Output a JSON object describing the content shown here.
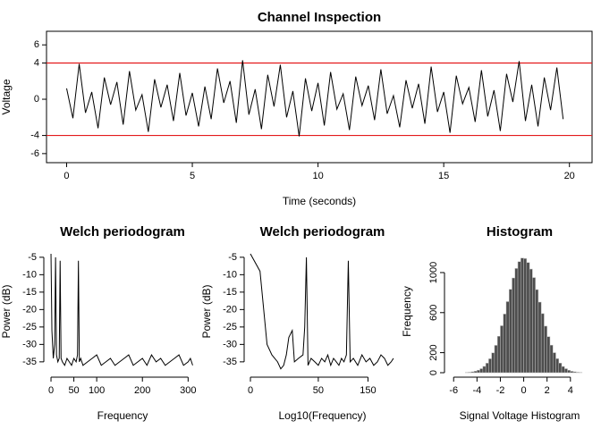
{
  "chart_data": [
    {
      "type": "line",
      "title": "Channel Inspection",
      "x_label": "Time (seconds)",
      "y_label": "Voltage",
      "x": [
        0,
        0.25,
        0.5,
        0.75,
        1,
        1.25,
        1.5,
        1.75,
        2,
        2.25,
        2.5,
        2.75,
        3,
        3.25,
        3.5,
        3.75,
        4,
        4.25,
        4.5,
        4.75,
        5,
        5.25,
        5.5,
        5.75,
        6,
        6.25,
        6.5,
        6.75,
        7,
        7.25,
        7.5,
        7.75,
        8,
        8.25,
        8.5,
        8.75,
        9,
        9.25,
        9.5,
        9.75,
        10,
        10.25,
        10.5,
        10.75,
        11,
        11.25,
        11.5,
        11.75,
        12,
        12.25,
        12.5,
        12.75,
        13,
        13.25,
        13.5,
        13.75,
        14,
        14.25,
        14.5,
        14.75,
        15,
        15.25,
        15.5,
        15.75,
        16,
        16.25,
        16.5,
        16.75,
        17,
        17.25,
        17.5,
        17.75,
        18,
        18.25,
        18.5,
        18.75,
        19,
        19.25,
        19.5,
        19.75
      ],
      "values": [
        1.2,
        -2.1,
        3.9,
        -1.5,
        0.8,
        -3.2,
        2.4,
        -0.6,
        1.9,
        -2.8,
        3.1,
        -1.2,
        0.5,
        -3.6,
        2.2,
        -0.9,
        1.6,
        -2.4,
        2.9,
        -1.8,
        0.7,
        -3.0,
        1.4,
        -2.2,
        3.4,
        -0.4,
        2.0,
        -2.6,
        4.3,
        -1.7,
        1.1,
        -3.3,
        2.7,
        -0.8,
        3.8,
        -2.0,
        0.9,
        -4.1,
        2.3,
        -1.3,
        1.8,
        -2.9,
        3.0,
        -1.1,
        0.6,
        -3.4,
        2.5,
        -0.7,
        1.5,
        -2.3,
        3.3,
        -1.6,
        0.4,
        -3.1,
        2.1,
        -1.0,
        1.7,
        -2.7,
        3.6,
        -1.4,
        0.8,
        -3.7,
        2.6,
        -0.5,
        1.3,
        -2.5,
        3.2,
        -1.9,
        1.0,
        -3.5,
        2.8,
        -0.3,
        4.2,
        -2.4,
        1.6,
        -3.0,
        2.4,
        -1.2,
        3.5,
        -2.2
      ],
      "color": "#000000",
      "reference_lines": [
        4,
        -4
      ],
      "reference_color": "#e31a1c",
      "xlim": [
        -0.8,
        20.9
      ],
      "xticks": [
        0,
        5,
        10,
        15,
        20
      ],
      "ylim": [
        -7,
        7.5
      ],
      "yticks": [
        -6,
        -4,
        0,
        4,
        6
      ]
    },
    {
      "type": "line",
      "title": "Welch periodogram",
      "x_label": "Frequency",
      "y_label": "Power (dB)",
      "x": [
        0,
        2,
        5,
        8,
        10,
        12,
        15,
        18,
        20,
        22,
        25,
        30,
        35,
        40,
        45,
        50,
        55,
        58,
        60,
        62,
        65,
        70,
        80,
        90,
        100,
        110,
        120,
        130,
        140,
        150,
        160,
        170,
        180,
        190,
        200,
        210,
        220,
        230,
        240,
        250,
        260,
        270,
        280,
        290,
        300,
        305,
        310
      ],
      "values": [
        -4,
        -26,
        -34,
        -30,
        -5,
        -33,
        -35,
        -34,
        -6,
        -34,
        -35,
        -36,
        -34,
        -35,
        -36,
        -34,
        -35,
        -33,
        -6,
        -35,
        -34,
        -36,
        -35,
        -34,
        -33,
        -36,
        -35,
        -34,
        -36,
        -35,
        -34,
        -33,
        -36,
        -35,
        -34,
        -36,
        -33,
        -35,
        -34,
        -36,
        -35,
        -34,
        -33,
        -36,
        -35,
        -34,
        -36
      ],
      "color": "#000000",
      "xlim": [
        -2,
        315
      ],
      "xticks": [
        0,
        50,
        100,
        200,
        300
      ],
      "ylim": [
        -37.6,
        -3.5
      ],
      "yticks": [
        -35,
        -30,
        -25,
        -20,
        -15,
        -10,
        -5
      ]
    },
    {
      "type": "line",
      "title": "Welch periodogram",
      "x_label": "Log10(Frequency)",
      "y_label": "Power (dB)",
      "xscale": "sqrt",
      "x": [
        0,
        1,
        3,
        5,
        8,
        10,
        12,
        14,
        16,
        19,
        21,
        25,
        30,
        32,
        34,
        36,
        40,
        45,
        50,
        55,
        60,
        65,
        70,
        75,
        80,
        85,
        90,
        95,
        100,
        104,
        108,
        115,
        125,
        135,
        145,
        155,
        165,
        175,
        185,
        195,
        205,
        215,
        222
      ],
      "values": [
        -4,
        -9,
        -30,
        -33,
        -35,
        -37,
        -36,
        -33,
        -28,
        -26,
        -35,
        -34,
        -33,
        -25,
        -5,
        -36,
        -34,
        -35,
        -36,
        -34,
        -35,
        -33,
        -36,
        -34,
        -35,
        -36,
        -34,
        -35,
        -33,
        -6,
        -35,
        -34,
        -36,
        -33,
        -35,
        -34,
        -36,
        -35,
        -33,
        -34,
        -36,
        -35,
        -34
      ],
      "color": "#000000",
      "xlim": [
        0,
        225
      ],
      "xticks": [
        0,
        50,
        150
      ],
      "ylim": [
        -37.6,
        -3.5
      ],
      "yticks": [
        -35,
        -30,
        -25,
        -20,
        -15,
        -10,
        -5
      ]
    },
    {
      "type": "histogram",
      "title": "Histogram",
      "x_label": "Signal Voltage Histogram",
      "y_label": "Frequency",
      "bins": [
        -5,
        -4.75,
        -4.5,
        -4.25,
        -4,
        -3.75,
        -3.5,
        -3.25,
        -3,
        -2.75,
        -2.5,
        -2.25,
        -2,
        -1.75,
        -1.5,
        -1.25,
        -1,
        -0.75,
        -0.5,
        -0.25,
        0,
        0.25,
        0.5,
        0.75,
        1,
        1.25,
        1.5,
        1.75,
        2,
        2.25,
        2.5,
        2.75,
        3,
        3.25,
        3.5,
        3.75,
        4,
        4.25,
        4.5,
        4.75,
        5
      ],
      "values": [
        3,
        5,
        9,
        15,
        25,
        40,
        63,
        95,
        139,
        198,
        273,
        364,
        469,
        586,
        710,
        833,
        946,
        1041,
        1109,
        1145,
        1140,
        1100,
        1035,
        950,
        830,
        705,
        590,
        465,
        360,
        275,
        200,
        140,
        96,
        62,
        40,
        24,
        14,
        9,
        5,
        3
      ],
      "color": "#4d4d4d",
      "xlim": [
        -6.4,
        5.7
      ],
      "xticks": [
        -6,
        -4,
        -2,
        0,
        2,
        4
      ],
      "ylim": [
        0,
        1223
      ],
      "yticks": [
        0,
        200,
        600,
        1000
      ]
    }
  ]
}
